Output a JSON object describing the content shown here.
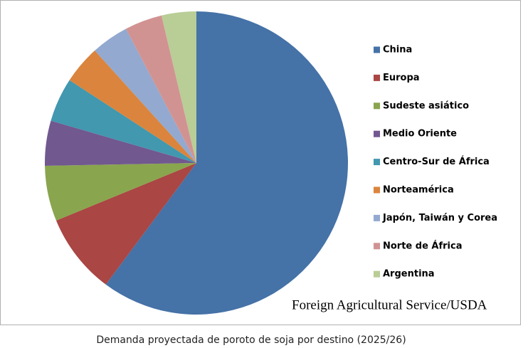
{
  "chart_data": {
    "type": "pie",
    "categories": [
      "China",
      "Europa",
      "Sudeste asiático",
      "Medio Oriente",
      "Centro-Sur de África",
      "Norteamérica",
      "Japón, Taiwán y Corea",
      "Norte de África",
      "Argentina"
    ],
    "values": [
      60.2,
      8.6,
      5.9,
      4.8,
      4.7,
      4.1,
      4.0,
      4.0,
      3.7
    ],
    "colors": [
      "#4572a7",
      "#aa4643",
      "#89a54e",
      "#71588f",
      "#4198af",
      "#db843d",
      "#93a9cf",
      "#d19392",
      "#b9cd96"
    ],
    "source": "Foreign Agricultural Service/USDA",
    "caption": "Demanda proyectada de poroto de soja por destino (2025/26)"
  }
}
